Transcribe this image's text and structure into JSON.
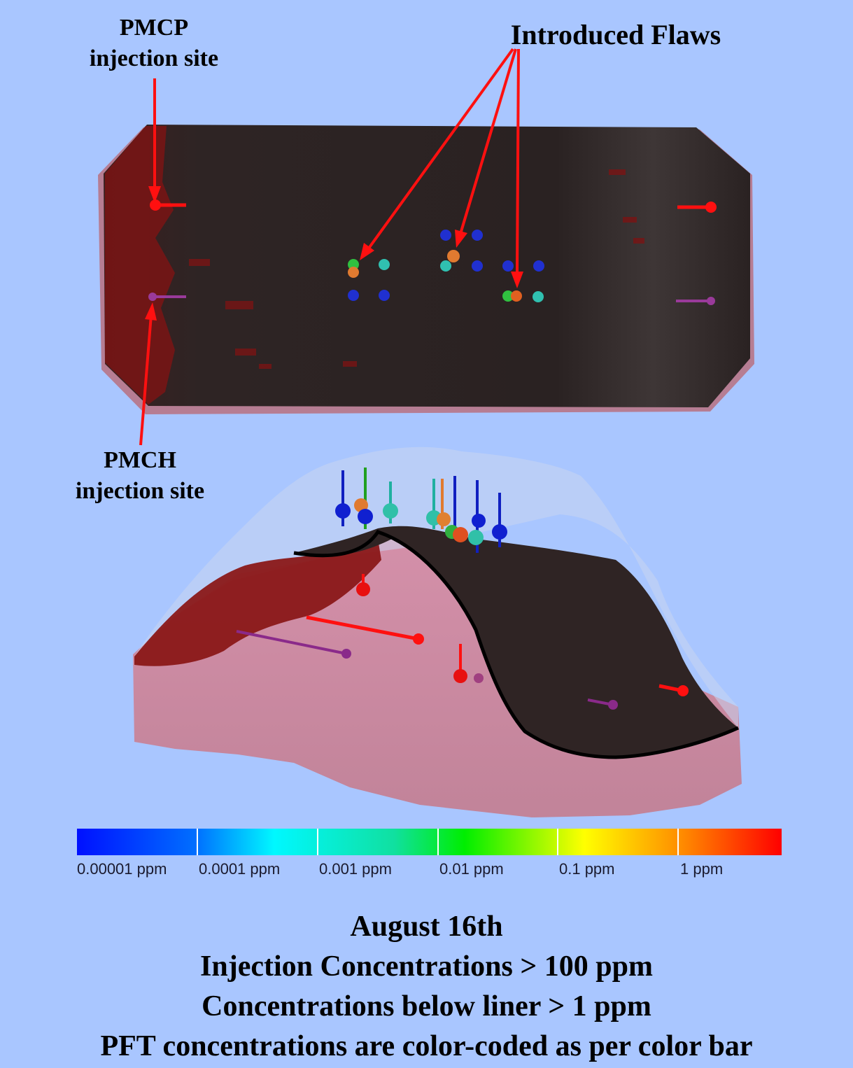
{
  "labels": {
    "pmcp_line1": "PMCP",
    "pmcp_line2": "injection site",
    "pmch_line1": "PMCH",
    "pmch_line2": "injection site",
    "flaws": "Introduced Flaws"
  },
  "colorbar": {
    "ticks": [
      "0.00001 ppm",
      "0.0001 ppm",
      "0.001 ppm",
      "0.01 ppm",
      "0.1 ppm",
      "1 ppm"
    ],
    "colors": [
      "#0000ff",
      "#00ffff",
      "#00ff00",
      "#ffff00",
      "#ff0000"
    ]
  },
  "caption": {
    "line1": "August 16th",
    "line2": "Injection Concentrations > 100 ppm",
    "line3": "Concentrations below liner > 1 ppm",
    "line4": "PFT concentrations are color-coded as per color bar"
  },
  "colors": {
    "background": "#a9c6ff",
    "liner": "#2d2222",
    "soil": "#c97888",
    "pmcp": "#ff0000",
    "pmch": "#8a2a8a"
  }
}
